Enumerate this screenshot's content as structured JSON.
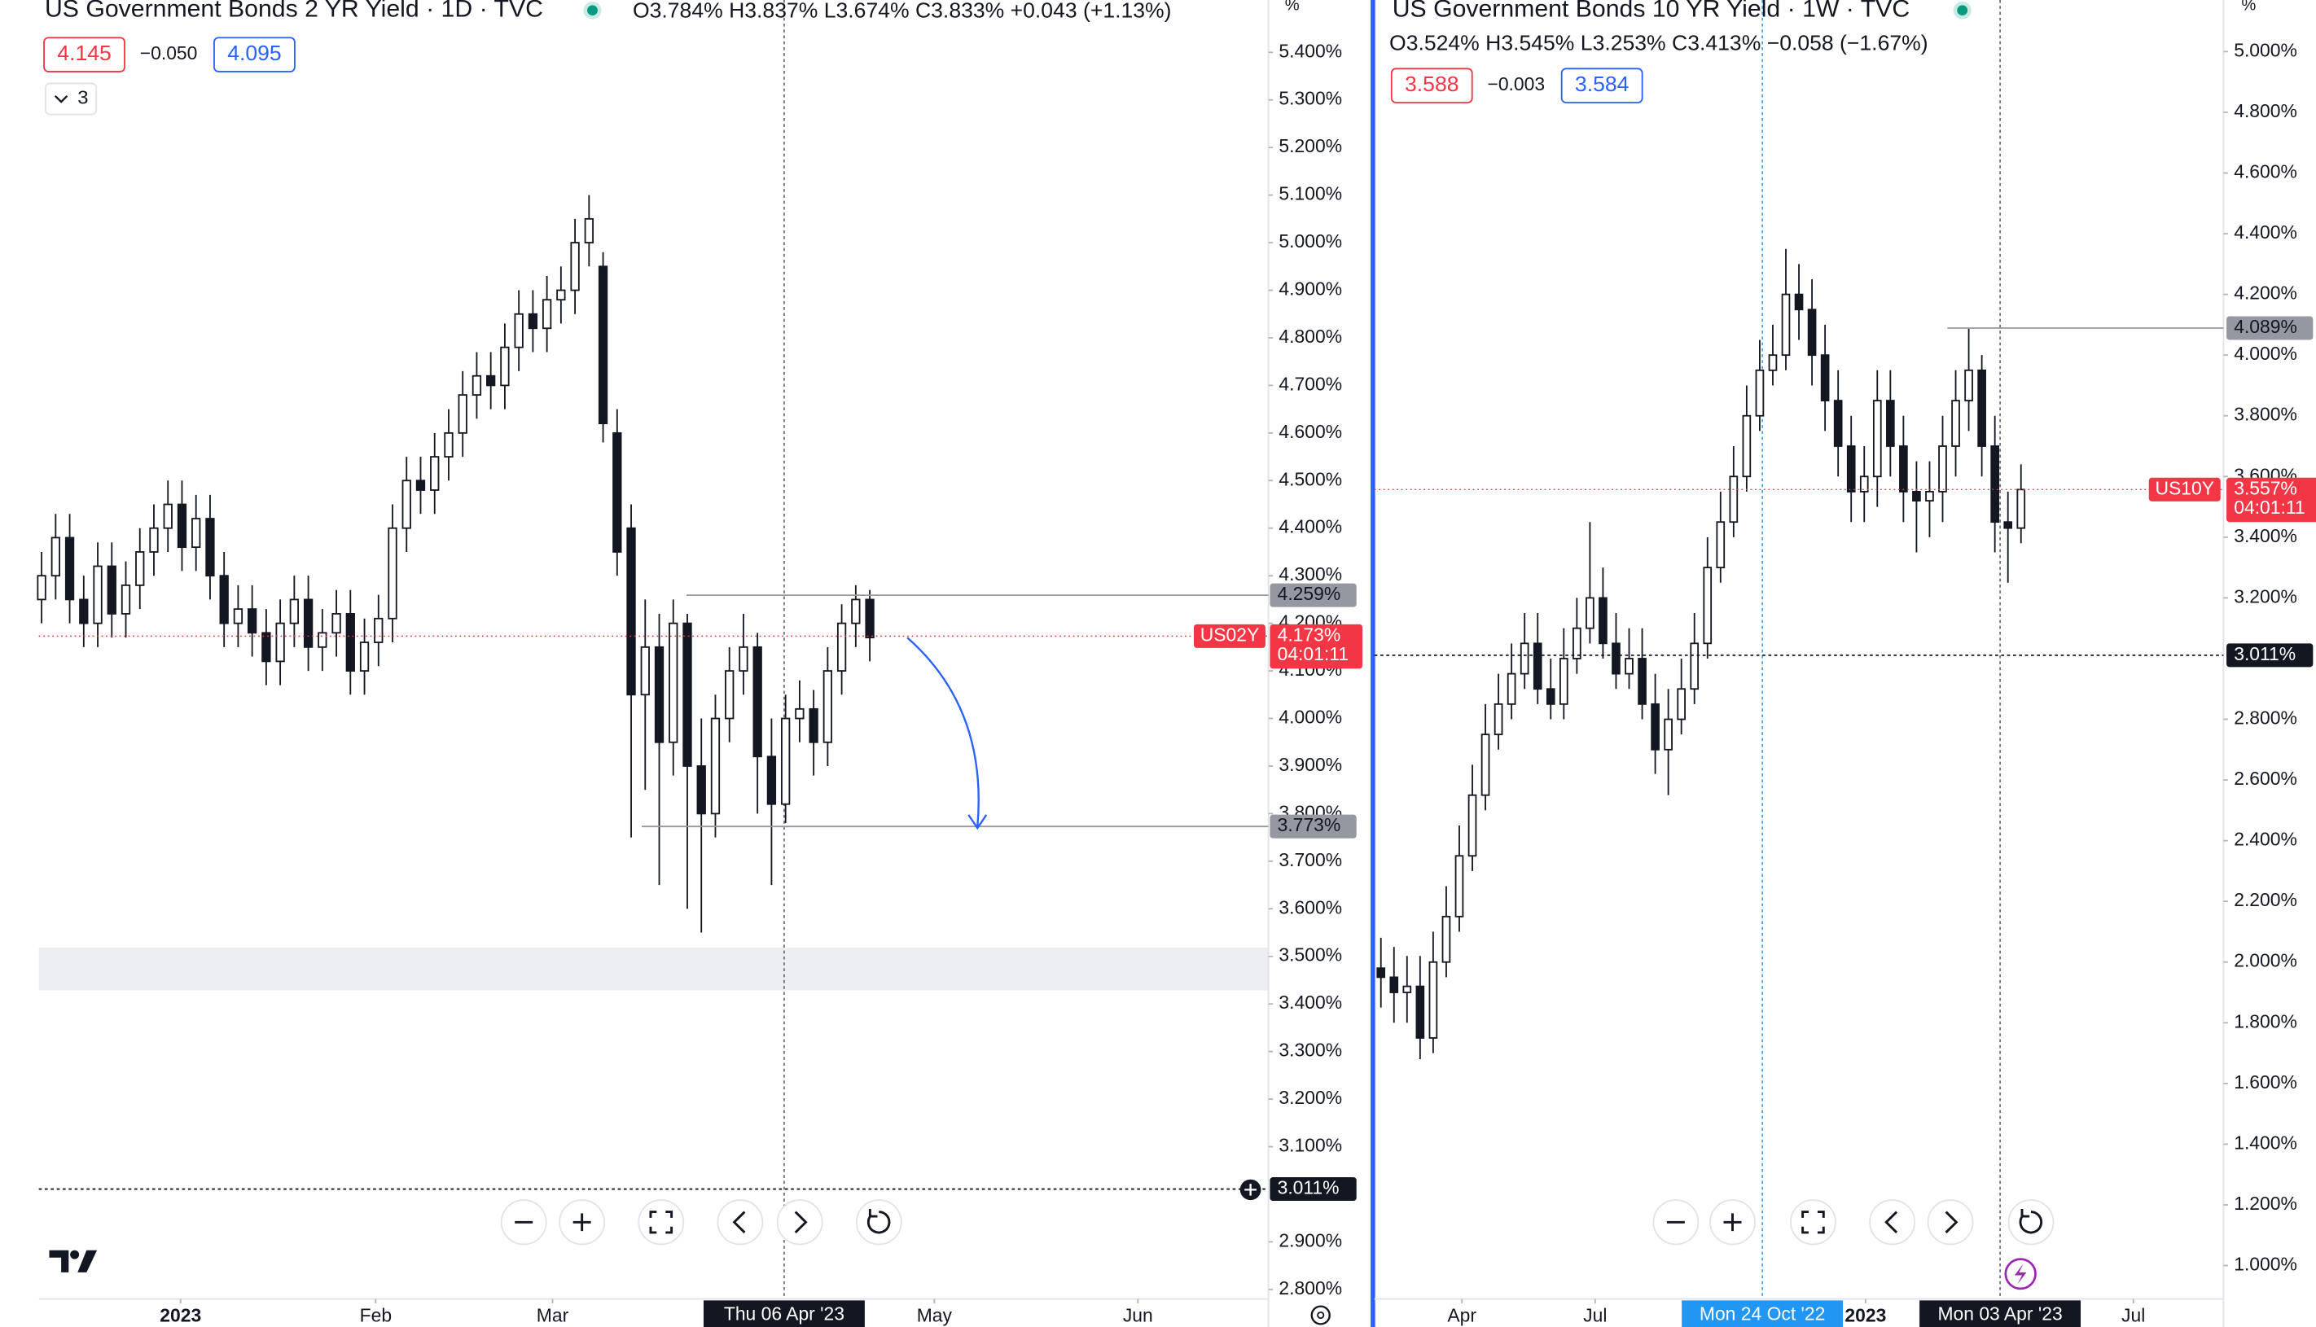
{
  "chart_data": [
    {
      "type": "candlestick",
      "title": "US Government Bonds 2 YR Yield · 1D · TVC",
      "ohlc": "O3.784% H3.837% L3.674% C3.833% +0.043 (+1.13%)",
      "bid": "4.145",
      "spread": "−0.050",
      "ask": "4.095",
      "indicator_count": 3,
      "unit": "%",
      "symbol": "US02Y",
      "last_price": {
        "value": 4.173,
        "label": "4.173%"
      },
      "countdown": "04:01:11",
      "last_color": "#f23645",
      "open": [
        4.25,
        4.3,
        4.38,
        4.25,
        4.2,
        4.32,
        4.22,
        4.28,
        4.35,
        4.4,
        4.45,
        4.36,
        4.42,
        4.3,
        4.2,
        4.23,
        4.18,
        4.12,
        4.2,
        4.25,
        4.15,
        4.18,
        4.22,
        4.1,
        4.16,
        4.21,
        4.4,
        4.5,
        4.48,
        4.55,
        4.6,
        4.68,
        4.72,
        4.7,
        4.78,
        4.85,
        4.82,
        4.88,
        4.9,
        5.0,
        4.95,
        4.6,
        4.4,
        4.05,
        4.15,
        3.95,
        4.2,
        3.9,
        3.8,
        4.0,
        4.1,
        4.15,
        3.92,
        3.82,
        4.0,
        4.02,
        3.95,
        4.1,
        4.2,
        4.25
      ],
      "high": [
        4.35,
        4.43,
        4.43,
        4.3,
        4.37,
        4.37,
        4.33,
        4.4,
        4.45,
        4.5,
        4.5,
        4.47,
        4.47,
        4.35,
        4.28,
        4.28,
        4.23,
        4.25,
        4.3,
        4.3,
        4.23,
        4.27,
        4.27,
        4.21,
        4.26,
        4.45,
        4.55,
        4.55,
        4.6,
        4.65,
        4.73,
        4.77,
        4.77,
        4.83,
        4.9,
        4.9,
        4.93,
        4.95,
        5.05,
        5.1,
        4.98,
        4.65,
        4.45,
        4.25,
        4.22,
        4.25,
        4.22,
        4.0,
        4.05,
        4.15,
        4.22,
        4.18,
        4.0,
        4.05,
        4.08,
        4.06,
        4.15,
        4.24,
        4.28,
        4.27
      ],
      "low": [
        4.2,
        4.25,
        4.2,
        4.15,
        4.15,
        4.17,
        4.17,
        4.23,
        4.3,
        4.35,
        4.31,
        4.31,
        4.25,
        4.15,
        4.15,
        4.13,
        4.07,
        4.07,
        4.15,
        4.1,
        4.1,
        4.13,
        4.05,
        4.05,
        4.11,
        4.16,
        4.35,
        4.43,
        4.43,
        4.5,
        4.55,
        4.63,
        4.65,
        4.65,
        4.73,
        4.77,
        4.77,
        4.83,
        4.85,
        4.95,
        4.58,
        4.3,
        3.75,
        3.85,
        3.65,
        3.88,
        3.6,
        3.55,
        3.75,
        3.95,
        4.05,
        3.8,
        3.65,
        3.78,
        3.95,
        3.88,
        3.9,
        4.05,
        4.15,
        4.12
      ],
      "close": [
        4.3,
        4.38,
        4.25,
        4.2,
        4.32,
        4.22,
        4.28,
        4.35,
        4.4,
        4.45,
        4.36,
        4.42,
        4.3,
        4.2,
        4.23,
        4.18,
        4.12,
        4.2,
        4.25,
        4.15,
        4.18,
        4.22,
        4.1,
        4.16,
        4.21,
        4.4,
        4.5,
        4.48,
        4.55,
        4.6,
        4.68,
        4.72,
        4.7,
        4.78,
        4.85,
        4.82,
        4.88,
        4.9,
        5.0,
        5.05,
        4.62,
        4.35,
        4.05,
        4.15,
        3.95,
        4.2,
        3.9,
        3.8,
        4.0,
        4.1,
        4.15,
        3.92,
        3.82,
        4.0,
        4.02,
        3.95,
        4.1,
        4.2,
        4.25,
        4.17
      ],
      "xlim": [
        -0.2,
        87.4
      ],
      "xticks": [
        {
          "value": 9.9,
          "label": "2023"
        },
        {
          "value": 23.8,
          "label": "Feb"
        },
        {
          "value": 36.4,
          "label": "Mar"
        },
        {
          "value": 63.6,
          "label": "May"
        },
        {
          "value": 78.1,
          "label": "Jun"
        }
      ],
      "crosshair": [
        {
          "value": 52.9,
          "label": "Thu 06 Apr '23",
          "color": "#131722"
        }
      ],
      "ylim": [
        2.78,
        5.51
      ],
      "yticks": [
        {
          "value": 5.4,
          "label": "5.400%"
        },
        {
          "value": 5.3,
          "label": "5.300%"
        },
        {
          "value": 5.2,
          "label": "5.200%"
        },
        {
          "value": 5.1,
          "label": "5.100%"
        },
        {
          "value": 5.0,
          "label": "5.000%"
        },
        {
          "value": 4.9,
          "label": "4.900%"
        },
        {
          "value": 4.8,
          "label": "4.800%"
        },
        {
          "value": 4.7,
          "label": "4.700%"
        },
        {
          "value": 4.6,
          "label": "4.600%"
        },
        {
          "value": 4.5,
          "label": "4.500%"
        },
        {
          "value": 4.4,
          "label": "4.400%"
        },
        {
          "value": 4.3,
          "label": "4.300%"
        },
        {
          "value": 4.2,
          "label": "4.200%"
        },
        {
          "value": 4.1,
          "label": "4.100%"
        },
        {
          "value": 4.0,
          "label": "4.000%"
        },
        {
          "value": 3.9,
          "label": "3.900%"
        },
        {
          "value": 3.8,
          "label": "3.800%"
        },
        {
          "value": 3.7,
          "label": "3.700%"
        },
        {
          "value": 3.6,
          "label": "3.600%"
        },
        {
          "value": 3.5,
          "label": "3.500%"
        },
        {
          "value": 3.4,
          "label": "3.400%"
        },
        {
          "value": 3.3,
          "label": "3.300%"
        },
        {
          "value": 3.2,
          "label": "3.200%"
        },
        {
          "value": 3.1,
          "label": "3.100%"
        },
        {
          "value": 2.9,
          "label": "2.900%"
        },
        {
          "value": 2.8,
          "label": "2.800%"
        }
      ],
      "levels": [
        {
          "value": 4.259,
          "label": "4.259%",
          "color": "#9598a1",
          "line_style": "solid"
        },
        {
          "value": 3.773,
          "label": "3.773%",
          "color": "#9598a1",
          "line_style": "solid"
        },
        {
          "value": 3.011,
          "label": "3.011%",
          "color": "#131722",
          "line_style": "dotted"
        }
      ]
    },
    {
      "type": "candlestick",
      "title": "US Government Bonds 10 YR Yield · 1W · TVC",
      "ohlc": "O3.524% H3.545% L3.253% C3.413% −0.058 (−1.67%)",
      "bid": "3.588",
      "spread": "−0.003",
      "ask": "3.584",
      "unit": "%",
      "symbol": "US10Y",
      "last_price": {
        "value": 3.557,
        "label": "3.557%"
      },
      "countdown": "04:01:11",
      "last_color": "#f23645",
      "open": [
        1.98,
        1.95,
        1.9,
        1.92,
        1.75,
        2.0,
        2.15,
        2.35,
        2.55,
        2.75,
        2.85,
        2.95,
        3.05,
        2.9,
        2.85,
        3.0,
        3.1,
        3.2,
        3.05,
        2.95,
        3.0,
        2.85,
        2.7,
        2.8,
        2.9,
        3.05,
        3.3,
        3.45,
        3.6,
        3.8,
        3.95,
        4.0,
        4.2,
        4.15,
        4.0,
        3.85,
        3.7,
        3.55,
        3.6,
        3.85,
        3.7,
        3.55,
        3.52,
        3.55,
        3.7,
        3.85,
        3.95,
        3.7,
        3.45,
        3.43
      ],
      "high": [
        2.08,
        2.05,
        2.02,
        2.02,
        2.1,
        2.25,
        2.45,
        2.65,
        2.85,
        2.95,
        3.05,
        3.15,
        3.15,
        3.0,
        3.1,
        3.2,
        3.45,
        3.3,
        3.15,
        3.1,
        3.1,
        2.95,
        2.9,
        3.0,
        3.15,
        3.4,
        3.55,
        3.7,
        3.9,
        4.05,
        4.1,
        4.35,
        4.3,
        4.25,
        4.1,
        3.95,
        3.8,
        3.7,
        3.95,
        3.95,
        3.8,
        3.65,
        3.65,
        3.8,
        3.95,
        4.09,
        4.0,
        3.8,
        3.55,
        3.64
      ],
      "low": [
        1.85,
        1.8,
        1.8,
        1.68,
        1.7,
        1.95,
        2.1,
        2.3,
        2.5,
        2.7,
        2.8,
        2.9,
        2.85,
        2.8,
        2.8,
        2.95,
        3.05,
        3.0,
        2.9,
        2.9,
        2.8,
        2.62,
        2.55,
        2.75,
        2.85,
        3.0,
        3.25,
        3.4,
        3.55,
        3.75,
        3.9,
        3.95,
        4.05,
        3.9,
        3.75,
        3.6,
        3.45,
        3.45,
        3.5,
        3.6,
        3.45,
        3.35,
        3.4,
        3.45,
        3.6,
        3.75,
        3.6,
        3.35,
        3.25,
        3.38
      ],
      "close": [
        1.95,
        1.9,
        1.92,
        1.75,
        2.0,
        2.15,
        2.35,
        2.55,
        2.75,
        2.85,
        2.95,
        3.05,
        2.9,
        2.85,
        3.0,
        3.1,
        3.2,
        3.05,
        2.95,
        3.0,
        2.85,
        2.7,
        2.8,
        2.9,
        3.05,
        3.3,
        3.45,
        3.6,
        3.8,
        3.95,
        4.0,
        4.2,
        4.15,
        4.0,
        3.85,
        3.7,
        3.55,
        3.6,
        3.85,
        3.7,
        3.55,
        3.52,
        3.55,
        3.7,
        3.85,
        3.95,
        3.7,
        3.45,
        3.43,
        3.557
      ],
      "xlim": [
        -0.5,
        64.5
      ],
      "xticks": [
        {
          "value": 6.2,
          "label": "Apr"
        },
        {
          "value": 16.4,
          "label": "Jul"
        },
        {
          "value": 37.1,
          "label": "2023"
        },
        {
          "value": 57.6,
          "label": "Jul"
        }
      ],
      "crosshair": [
        {
          "value": 29.2,
          "label": "Mon 24 Oct '22",
          "color": "#2196f3"
        },
        {
          "value": 47.4,
          "label": "Mon 03 Apr '23",
          "color": "#131722"
        }
      ],
      "ylim": [
        0.89,
        5.17
      ],
      "yticks": [
        {
          "value": 5.0,
          "label": "5.000%"
        },
        {
          "value": 4.8,
          "label": "4.800%"
        },
        {
          "value": 4.6,
          "label": "4.600%"
        },
        {
          "value": 4.4,
          "label": "4.400%"
        },
        {
          "value": 4.2,
          "label": "4.200%"
        },
        {
          "value": 4.0,
          "label": "4.000%"
        },
        {
          "value": 3.8,
          "label": "3.800%"
        },
        {
          "value": 3.6,
          "label": "3.600%"
        },
        {
          "value": 3.4,
          "label": "3.400%"
        },
        {
          "value": 3.2,
          "label": "3.200%"
        },
        {
          "value": 2.8,
          "label": "2.800%"
        },
        {
          "value": 2.6,
          "label": "2.600%"
        },
        {
          "value": 2.4,
          "label": "2.400%"
        },
        {
          "value": 2.2,
          "label": "2.200%"
        },
        {
          "value": 2.0,
          "label": "2.000%"
        },
        {
          "value": 1.8,
          "label": "1.800%"
        },
        {
          "value": 1.6,
          "label": "1.600%"
        },
        {
          "value": 1.4,
          "label": "1.400%"
        },
        {
          "value": 1.2,
          "label": "1.200%"
        },
        {
          "value": 1.0,
          "label": "1.000%"
        }
      ],
      "levels": [
        {
          "value": 4.089,
          "label": "4.089%",
          "color": "#9598a1",
          "line_style": "solid"
        },
        {
          "value": 3.011,
          "label": "3.011%",
          "color": "#131722",
          "line_style": "dotted"
        }
      ]
    }
  ]
}
